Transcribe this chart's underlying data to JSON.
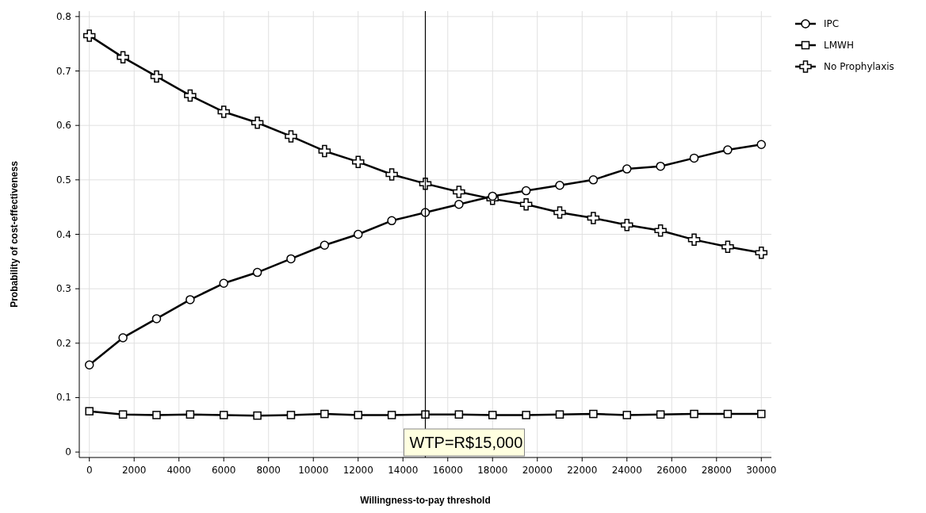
{
  "chart_data": {
    "type": "line",
    "xlabel": "Willingness-to-pay threshold",
    "ylabel": "Probability of cost-effectiveness",
    "x": [
      0,
      1500,
      3000,
      4500,
      6000,
      7500,
      9000,
      10500,
      12000,
      13500,
      15000,
      16500,
      18000,
      19500,
      21000,
      22500,
      24000,
      25500,
      27000,
      28500,
      30000
    ],
    "series": [
      {
        "name": "IPC",
        "color": "#000000",
        "marker": "circle",
        "values": [
          0.16,
          0.21,
          0.245,
          0.28,
          0.31,
          0.33,
          0.355,
          0.38,
          0.4,
          0.425,
          0.44,
          0.455,
          0.47,
          0.48,
          0.49,
          0.5,
          0.52,
          0.525,
          0.54,
          0.555,
          0.565
        ]
      },
      {
        "name": "LMWH",
        "color": "#000000",
        "marker": "square",
        "values": [
          0.075,
          0.069,
          0.068,
          0.069,
          0.068,
          0.067,
          0.068,
          0.07,
          0.068,
          0.068,
          0.069,
          0.069,
          0.068,
          0.068,
          0.069,
          0.07,
          0.068,
          0.069,
          0.07,
          0.07,
          0.07
        ]
      },
      {
        "name": "No Prophylaxis",
        "color": "#000000",
        "marker": "cross",
        "values": [
          0.765,
          0.725,
          0.69,
          0.655,
          0.625,
          0.605,
          0.58,
          0.553,
          0.533,
          0.51,
          0.493,
          0.478,
          0.465,
          0.455,
          0.44,
          0.43,
          0.417,
          0.407,
          0.39,
          0.377,
          0.366
        ]
      }
    ],
    "xlim": [
      -450,
      30450
    ],
    "xticks": [
      0,
      2000,
      4000,
      6000,
      8000,
      10000,
      12000,
      14000,
      16000,
      18000,
      20000,
      22000,
      24000,
      26000,
      28000,
      30000
    ],
    "ylim": [
      -0.01,
      0.81
    ],
    "yticks": [
      0,
      0.1,
      0.2,
      0.3,
      0.4,
      0.5,
      0.6,
      0.7,
      0.8
    ],
    "ref_lines": [
      {
        "axis": "x",
        "value": 15000,
        "label": "WTP=R$15,000",
        "color": "#000000"
      }
    ],
    "grid": true,
    "legend": "top right",
    "line_style": "solid"
  }
}
